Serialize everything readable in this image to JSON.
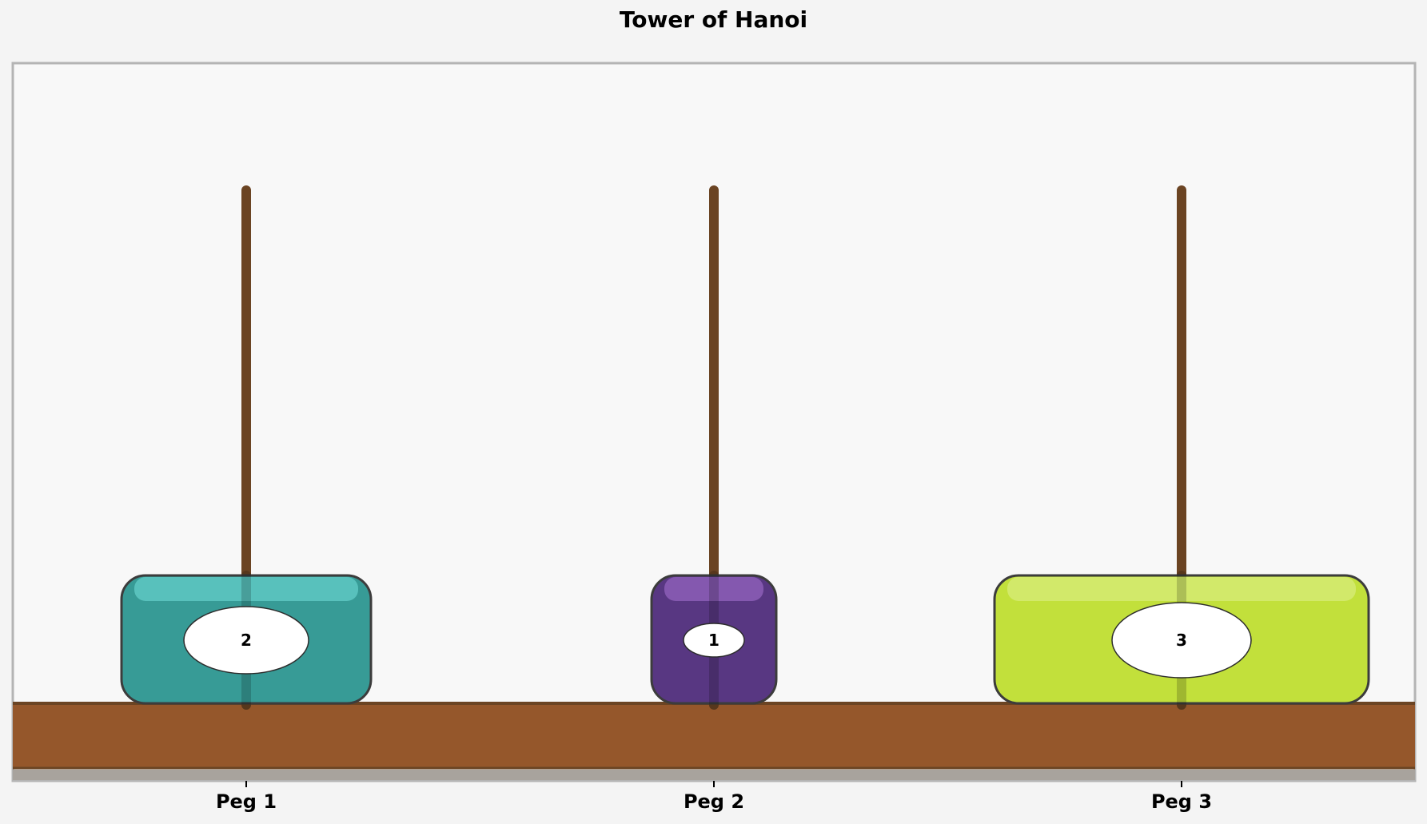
{
  "title": "Tower of Hanoi",
  "pegs": [
    {
      "label": "Peg 1",
      "disks": [
        2
      ]
    },
    {
      "label": "Peg 2",
      "disks": [
        1
      ]
    },
    {
      "label": "Peg 3",
      "disks": [
        3
      ]
    }
  ],
  "disks": [
    {
      "number": "1",
      "color": "#583782",
      "highlight": "#8a5cb4"
    },
    {
      "number": "2",
      "color": "#379b96",
      "highlight": "#5cc5c0"
    },
    {
      "number": "3",
      "color": "#c2e03b",
      "highlight": "#d4ea70"
    }
  ],
  "colors": {
    "background": "#f4f4f4",
    "board_background": "#f8f8f8",
    "board_border": "#b4b4b4",
    "peg": "#6b4423",
    "base": "#95572b",
    "base_edge": "#6b4423",
    "disk_outline": "#3c3c3c"
  }
}
